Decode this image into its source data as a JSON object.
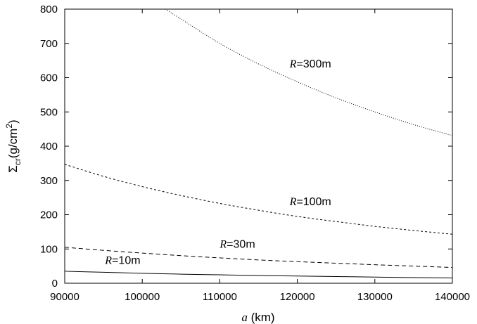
{
  "chart_data": {
    "type": "line",
    "xlabel": {
      "symbol": "a",
      "unit": " (km)"
    },
    "ylabel": {
      "symbol": "Σ",
      "sub": "cr",
      "unit_pre": "(g/cm",
      "sup": "2",
      "unit_post": ")"
    },
    "xlim": [
      90000,
      140000
    ],
    "ylim": [
      0,
      800
    ],
    "xticks": [
      90000,
      100000,
      110000,
      120000,
      130000,
      140000
    ],
    "yticks": [
      0,
      100,
      200,
      300,
      400,
      500,
      600,
      700,
      800
    ],
    "grid": false,
    "legend": "none",
    "series": [
      {
        "label_italic": "R",
        "label_rest": "=10m",
        "line_style": "solid",
        "label_at": [
          95200,
          56
        ],
        "x": [
          90000,
          95000,
          100000,
          105000,
          110000,
          115000,
          120000,
          125000,
          130000,
          135000,
          140000
        ],
        "y": [
          35,
          32,
          29,
          26.5,
          24.5,
          22.5,
          21,
          19.5,
          18,
          16.5,
          15.5
        ]
      },
      {
        "label_italic": "R",
        "label_rest": "=30m",
        "line_style": "dashed",
        "label_at": [
          110000,
          104
        ],
        "x": [
          90000,
          95000,
          100000,
          105000,
          110000,
          115000,
          120000,
          125000,
          130000,
          135000,
          140000
        ],
        "y": [
          105,
          96,
          88,
          80.5,
          74,
          68,
          63,
          58.5,
          54,
          50,
          46
        ]
      },
      {
        "label_italic": "R",
        "label_rest": "=100m",
        "line_style": "short-dashed",
        "label_at": [
          119000,
          228
        ],
        "x": [
          90000,
          95000,
          100000,
          105000,
          110000,
          115000,
          120000,
          125000,
          130000,
          135000,
          140000
        ],
        "y": [
          347,
          312,
          282,
          256,
          233,
          213,
          195,
          180,
          166,
          154,
          143
        ]
      },
      {
        "label_italic": "R",
        "label_rest": "=300m",
        "line_style": "dotted",
        "label_at": [
          119000,
          630
        ],
        "x": [
          103000,
          105000,
          110000,
          115000,
          120000,
          125000,
          130000,
          135000,
          140000
        ],
        "y": [
          800,
          771,
          700,
          640,
          588,
          541,
          500,
          463,
          431
        ]
      }
    ]
  }
}
